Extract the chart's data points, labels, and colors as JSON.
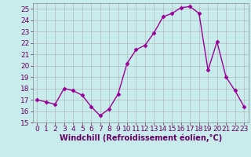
{
  "x": [
    0,
    1,
    2,
    3,
    4,
    5,
    6,
    7,
    8,
    9,
    10,
    11,
    12,
    13,
    14,
    15,
    16,
    17,
    18,
    19,
    20,
    21,
    22,
    23
  ],
  "y": [
    17.0,
    16.8,
    16.6,
    18.0,
    17.8,
    17.4,
    16.4,
    15.6,
    16.2,
    17.5,
    20.2,
    21.4,
    21.8,
    22.9,
    24.3,
    24.6,
    25.1,
    25.2,
    24.6,
    19.6,
    22.1,
    19.0,
    17.8,
    16.4
  ],
  "color": "#990099",
  "bg_color": "#c8ecec",
  "grid_color": "#b0b0b0",
  "xlabel": "Windchill (Refroidissement éolien,°C)",
  "ylim": [
    15,
    25.5
  ],
  "xlim": [
    -0.5,
    23.5
  ],
  "yticks": [
    15,
    16,
    17,
    18,
    19,
    20,
    21,
    22,
    23,
    24,
    25
  ],
  "xticks": [
    0,
    1,
    2,
    3,
    4,
    5,
    6,
    7,
    8,
    9,
    10,
    11,
    12,
    13,
    14,
    15,
    16,
    17,
    18,
    19,
    20,
    21,
    22,
    23
  ],
  "marker": "D",
  "markersize": 2.5,
  "linewidth": 1.0,
  "xlabel_fontsize": 7,
  "tick_fontsize": 6.5,
  "tick_color": "#660066",
  "label_color": "#660066"
}
